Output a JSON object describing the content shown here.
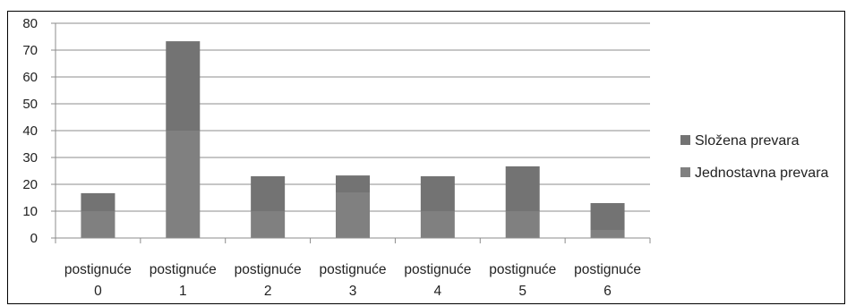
{
  "chart_data": {
    "type": "bar",
    "stacked": true,
    "categories": [
      [
        "postignuće",
        "0"
      ],
      [
        "postignuće",
        "1"
      ],
      [
        "postignuće",
        "2"
      ],
      [
        "postignuće",
        "3"
      ],
      [
        "postignuće",
        "4"
      ],
      [
        "postignuće",
        "5"
      ],
      [
        "postignuće",
        "6"
      ]
    ],
    "series": [
      {
        "name": "Jednostavna prevara",
        "values": [
          10,
          40,
          10,
          17,
          10,
          10,
          3
        ],
        "color": "#808080"
      },
      {
        "name": "Složena prevara",
        "values": [
          6.7,
          33.3,
          13,
          6.3,
          13,
          16.7,
          10
        ],
        "color": "#737373"
      }
    ],
    "ylim": [
      0,
      80
    ],
    "yticks": [
      0,
      10,
      20,
      30,
      40,
      50,
      60,
      70,
      80
    ],
    "grid": true,
    "legend_position": "right"
  }
}
